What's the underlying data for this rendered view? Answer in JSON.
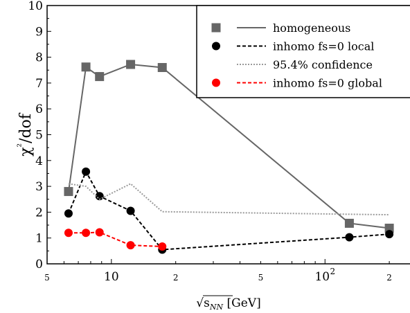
{
  "chart_data": {
    "type": "line",
    "xscale": "log",
    "xlim": [
      5,
      250
    ],
    "ylim": [
      0,
      10
    ],
    "xlabel": "√sNN [GeV]",
    "ylabel": "χ²/dof",
    "y_ticks": [
      "0",
      "1",
      "2",
      "3",
      "4",
      "5",
      "6",
      "7",
      "8",
      "9",
      "10"
    ],
    "x_tick_labels": [
      {
        "x": 5,
        "label": "5",
        "minor": true
      },
      {
        "x": 10,
        "label": "10",
        "minor": false
      },
      {
        "x": 20,
        "label": "2",
        "minor": true
      },
      {
        "x": 50,
        "label": "5",
        "minor": true
      },
      {
        "x": 100,
        "label": "10",
        "exponent": "2",
        "minor": false
      },
      {
        "x": 200,
        "label": "2",
        "minor": true
      }
    ],
    "legend_position": "top-right",
    "series": [
      {
        "name": "homogeneous",
        "color": "#666666",
        "marker": "square",
        "dash": "none",
        "x": [
          6.3,
          7.6,
          8.8,
          12.3,
          17.3,
          130,
          200
        ],
        "y": [
          2.8,
          7.62,
          7.25,
          7.72,
          7.6,
          1.57,
          1.38
        ]
      },
      {
        "name": "inhomo fs=0 local",
        "color": "#000000",
        "marker": "circle",
        "dash": "5,3",
        "x": [
          6.3,
          7.6,
          8.8,
          12.3,
          17.3,
          130,
          200
        ],
        "y": [
          1.95,
          3.57,
          2.62,
          2.05,
          0.55,
          1.03,
          1.15
        ]
      },
      {
        "name": "95.4% confidence",
        "color": "#999999",
        "marker": "none",
        "dash": "2,2",
        "x": [
          6.3,
          7.6,
          8.8,
          12.3,
          17.3,
          130,
          200
        ],
        "y": [
          3.1,
          3.0,
          2.5,
          3.1,
          2.02,
          1.92,
          1.9
        ]
      },
      {
        "name": "inhomo fs=0 global",
        "color": "#ff0000",
        "marker": "circle",
        "dash": "5,3",
        "x": [
          6.3,
          7.6,
          8.8,
          12.3,
          17.3
        ],
        "y": [
          1.2,
          1.2,
          1.22,
          0.72,
          0.67
        ]
      }
    ]
  }
}
